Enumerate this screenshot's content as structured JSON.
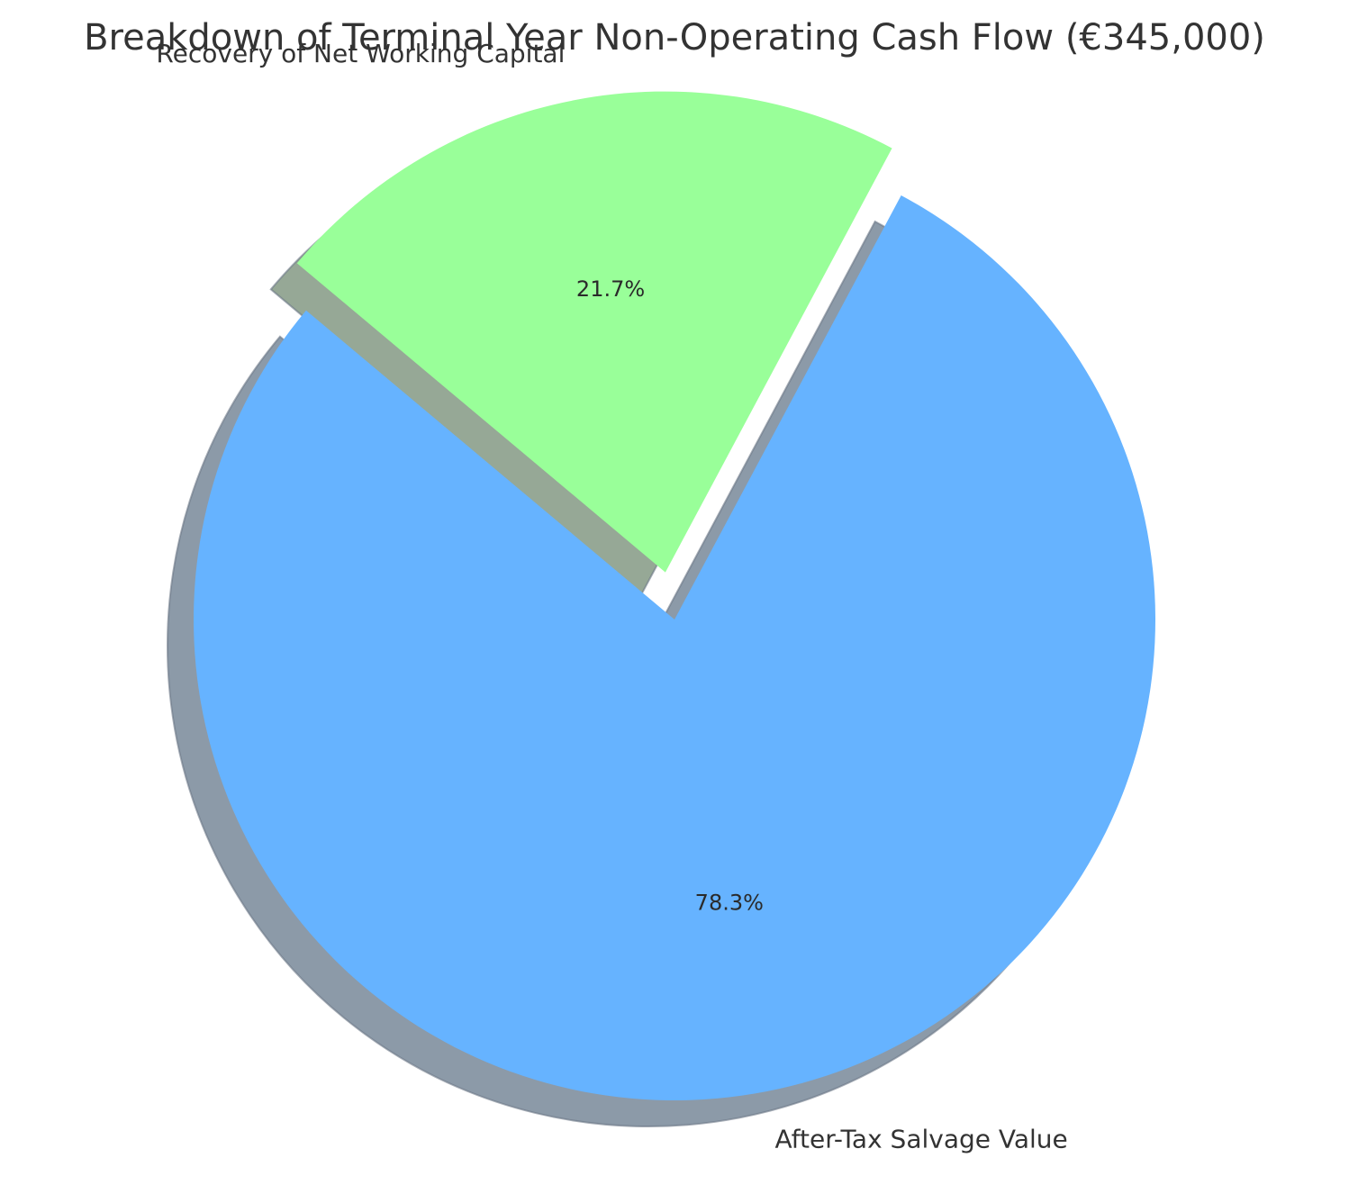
{
  "chart_data": {
    "type": "pie",
    "title": "Breakdown of Terminal Year Non-Operating Cash Flow (€345,000)",
    "slices": [
      {
        "label": "After-Tax Salvage Value",
        "percent": 78.3,
        "percent_label": "78.3%",
        "color": "#66b3ff",
        "shadow_color": "#8c9aa8",
        "exploded": false
      },
      {
        "label": "Recovery of Net Working Capital",
        "percent": 21.7,
        "percent_label": "21.7%",
        "color": "#99ff99",
        "shadow_color": "#96a896",
        "exploded": true
      }
    ],
    "start_angle_deg": 140,
    "direction": "counterclockwise",
    "shadow": true,
    "legend": "none"
  }
}
